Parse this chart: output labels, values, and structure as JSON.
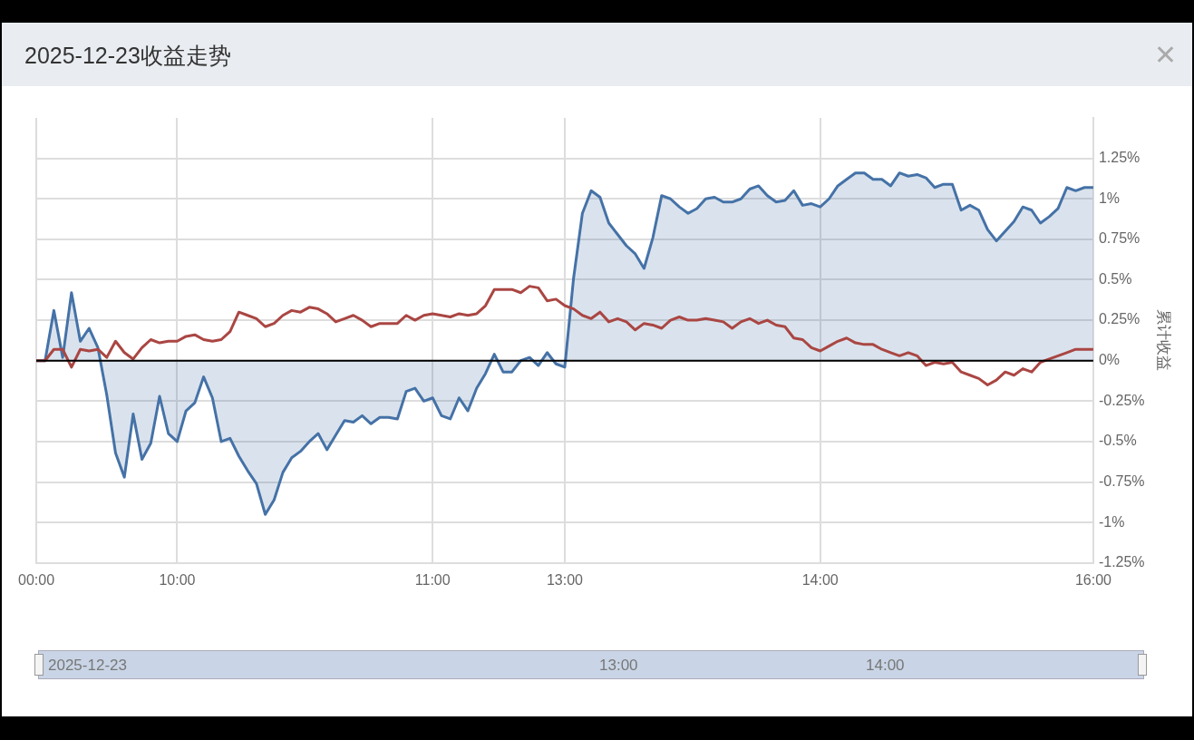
{
  "chart_data": {
    "type": "line",
    "title": "2025-12-23收益走势",
    "y2label": "累计收益",
    "categories": [
      "00:00",
      null,
      null,
      null,
      null,
      null,
      null,
      null,
      null,
      null,
      null,
      null,
      null,
      null,
      null,
      null,
      "10:00",
      null,
      null,
      null,
      null,
      null,
      null,
      null,
      null,
      null,
      null,
      null,
      null,
      null,
      null,
      null,
      null,
      null,
      null,
      null,
      null,
      null,
      null,
      null,
      null,
      null,
      null,
      null,
      null,
      "11:00",
      null,
      null,
      null,
      null,
      null,
      null,
      null,
      null,
      null,
      null,
      null,
      null,
      null,
      null,
      "13:00",
      null,
      null,
      null,
      null,
      null,
      null,
      null,
      null,
      null,
      null,
      null,
      null,
      null,
      null,
      null,
      null,
      null,
      null,
      null,
      null,
      null,
      null,
      null,
      null,
      null,
      null,
      null,
      null,
      "14:00",
      null,
      null,
      null,
      null,
      null,
      null,
      null,
      null,
      null,
      null,
      null,
      null,
      null,
      null,
      null,
      null,
      null,
      null,
      null,
      null,
      null,
      null,
      null,
      null,
      null,
      null,
      null,
      null,
      null,
      null,
      "16:00"
    ],
    "series": [
      {
        "type": "area",
        "axis": "y2",
        "color": "#4572a7",
        "values": [
          0,
          0,
          0.31,
          0.02,
          0.42,
          0.12,
          0.2,
          0.08,
          -0.21,
          -0.57,
          -0.72,
          -0.33,
          -0.61,
          -0.51,
          -0.22,
          -0.45,
          -0.5,
          -0.31,
          -0.26,
          -0.1,
          -0.23,
          -0.5,
          -0.48,
          -0.59,
          -0.68,
          -0.76,
          -0.95,
          -0.86,
          -0.69,
          -0.6,
          -0.56,
          -0.5,
          -0.45,
          -0.55,
          -0.46,
          -0.37,
          -0.38,
          -0.34,
          -0.39,
          -0.35,
          -0.35,
          -0.36,
          -0.19,
          -0.17,
          -0.25,
          -0.23,
          -0.34,
          -0.36,
          -0.23,
          -0.31,
          -0.17,
          -0.08,
          0.04,
          -0.07,
          -0.07,
          0,
          0.02,
          -0.03,
          0.05,
          -0.02,
          -0.04,
          0.51,
          0.91,
          1.05,
          1.01,
          0.85,
          0.78,
          0.71,
          0.66,
          0.57,
          0.76,
          1.02,
          1.0,
          0.95,
          0.91,
          0.94,
          1.0,
          1.01,
          0.98,
          0.98,
          1.0,
          1.06,
          1.08,
          1.02,
          0.98,
          0.99,
          1.05,
          0.96,
          0.97,
          0.95,
          1.0,
          1.08,
          1.12,
          1.16,
          1.16,
          1.12,
          1.12,
          1.08,
          1.16,
          1.14,
          1.15,
          1.13,
          1.07,
          1.09,
          1.09,
          0.93,
          0.96,
          0.93,
          0.81,
          0.74,
          0.8,
          0.86,
          0.95,
          0.93,
          0.85,
          0.89,
          0.94,
          1.07,
          1.05,
          1.07,
          1.07
        ]
      },
      {
        "type": "line",
        "axis": "y2",
        "color": "#aa4643",
        "values": [
          0,
          0,
          0.07,
          0.07,
          -0.04,
          0.07,
          0.06,
          0.07,
          0.02,
          0.12,
          0.05,
          0.01,
          0.08,
          0.13,
          0.11,
          0.12,
          0.12,
          0.15,
          0.16,
          0.13,
          0.12,
          0.13,
          0.18,
          0.3,
          0.28,
          0.26,
          0.21,
          0.23,
          0.28,
          0.31,
          0.3,
          0.33,
          0.32,
          0.29,
          0.24,
          0.26,
          0.28,
          0.25,
          0.21,
          0.23,
          0.23,
          0.23,
          0.28,
          0.25,
          0.28,
          0.29,
          0.28,
          0.27,
          0.29,
          0.28,
          0.29,
          0.34,
          0.44,
          0.44,
          0.44,
          0.42,
          0.46,
          0.45,
          0.37,
          0.38,
          0.34,
          0.32,
          0.28,
          0.26,
          0.3,
          0.24,
          0.26,
          0.24,
          0.19,
          0.23,
          0.22,
          0.2,
          0.25,
          0.27,
          0.25,
          0.25,
          0.26,
          0.25,
          0.24,
          0.2,
          0.24,
          0.26,
          0.23,
          0.25,
          0.22,
          0.21,
          0.14,
          0.13,
          0.08,
          0.06,
          0.09,
          0.12,
          0.14,
          0.11,
          0.1,
          0.1,
          0.07,
          0.05,
          0.03,
          0.05,
          0.03,
          -0.03,
          -0.01,
          -0.02,
          -0.01,
          -0.07,
          -0.09,
          -0.11,
          -0.15,
          -0.12,
          -0.07,
          -0.09,
          -0.05,
          -0.07,
          -0.01,
          0.01,
          0.03,
          0.05,
          0.07,
          0.07,
          0.07
        ]
      }
    ],
    "y2lim": [
      -1.25,
      1.5
    ],
    "y2ticks": [
      {
        "value": -1.25,
        "label": "-1.25%"
      },
      {
        "value": -1,
        "label": "-1%"
      },
      {
        "value": -0.75,
        "label": "-0.75%"
      },
      {
        "value": -0.5,
        "label": "-0.5%"
      },
      {
        "value": -0.25,
        "label": "-0.25%"
      },
      {
        "value": 0,
        "label": "0%"
      },
      {
        "value": 0.25,
        "label": "0.25%"
      },
      {
        "value": 0.5,
        "label": "0.5%"
      },
      {
        "value": 0.75,
        "label": "0.75%"
      },
      {
        "value": 1,
        "label": "1%"
      },
      {
        "value": 1.25,
        "label": "1.25%"
      }
    ],
    "ref_lines": [
      {
        "axis": "y2",
        "value": 0,
        "color": "#000000"
      }
    ],
    "annotations": [
      "2025-12-23",
      "13:00",
      "14:00"
    ],
    "grid": true,
    "marker": "none",
    "line_style": "solid",
    "legend": false
  }
}
